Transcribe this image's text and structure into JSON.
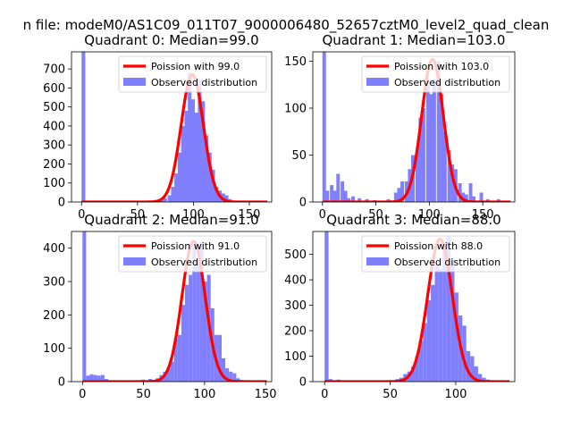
{
  "suptitle": "n file: modeM0/AS1C09_011T07_9000006480_52657cztM0_level2_quad_clean",
  "colors": {
    "hist": "#8080ff",
    "fit": "#ff0000"
  },
  "chart_data": [
    {
      "type": "bar+line",
      "title": "Quadrant 0: Median=99.0",
      "median": 99.0,
      "xlim": [
        -9,
        170
      ],
      "ylim": [
        0,
        790
      ],
      "xticks": [
        0,
        50,
        100,
        150
      ],
      "yticks": [
        0,
        100,
        200,
        300,
        400,
        500,
        600,
        700
      ],
      "bin_width": 3.3,
      "fit": {
        "label": "Poission with 99.0",
        "mean": 99.0,
        "peak": 670
      },
      "legend": {
        "line": "Poission with 99.0",
        "hist": "Observed distribution",
        "location": "upper right"
      },
      "hist": {
        "x": [
          0,
          70,
          73,
          77,
          80,
          83,
          86,
          89,
          92,
          95,
          98,
          101,
          104,
          107,
          110,
          113,
          116,
          119,
          122,
          125,
          128,
          131
        ],
        "values": [
          790,
          10,
          20,
          35,
          80,
          150,
          260,
          400,
          480,
          680,
          540,
          470,
          640,
          530,
          350,
          260,
          170,
          80,
          60,
          45,
          35,
          15
        ]
      }
    },
    {
      "type": "bar+line",
      "title": "Quadrant 1: Median=103.0",
      "median": 103.0,
      "xlim": [
        -9,
        180
      ],
      "ylim": [
        0,
        160
      ],
      "xticks": [
        0,
        50,
        100,
        150
      ],
      "yticks": [
        0,
        50,
        100,
        150
      ],
      "bin_width": 3.3,
      "fit": {
        "label": "Poission with 103.0",
        "mean": 103.0,
        "peak": 152
      },
      "legend": {
        "line": "Poission with 103.0",
        "hist": "Observed distribution",
        "location": "upper right"
      },
      "hist": {
        "x": [
          0,
          3,
          7,
          10,
          13,
          17,
          20,
          23,
          27,
          33,
          40,
          47,
          60,
          67,
          70,
          73,
          77,
          80,
          83,
          87,
          90,
          93,
          97,
          100,
          103,
          107,
          110,
          113,
          117,
          120,
          123,
          127,
          130,
          133,
          137,
          140,
          147,
          153,
          163
        ],
        "values": [
          160,
          12,
          18,
          12,
          30,
          22,
          12,
          4,
          6,
          4,
          3,
          2,
          3,
          10,
          15,
          22,
          22,
          35,
          50,
          55,
          90,
          100,
          125,
          115,
          130,
          150,
          115,
          75,
          55,
          40,
          35,
          20,
          10,
          8,
          20,
          6,
          10,
          3,
          3
        ]
      }
    },
    {
      "type": "bar+line",
      "title": "Quadrant 2: Median=91.0",
      "median": 91.0,
      "xlim": [
        -9,
        155
      ],
      "ylim": [
        0,
        450
      ],
      "xticks": [
        0,
        50,
        100,
        150
      ],
      "yticks": [
        0,
        100,
        200,
        300,
        400
      ],
      "bin_width": 3.0,
      "fit": {
        "label": "Poission with 91.0",
        "mean": 91.0,
        "peak": 420
      },
      "legend": {
        "line": "Poission with 91.0",
        "hist": "Observed distribution",
        "location": "upper right"
      },
      "hist": {
        "x": [
          0,
          3,
          6,
          9,
          12,
          15,
          18,
          48,
          54,
          60,
          63,
          66,
          69,
          72,
          75,
          78,
          81,
          84,
          87,
          90,
          93,
          96,
          99,
          102,
          105,
          108,
          111,
          114,
          117,
          120,
          123,
          126,
          129
        ],
        "values": [
          450,
          18,
          22,
          20,
          18,
          20,
          8,
          6,
          8,
          10,
          20,
          30,
          40,
          60,
          130,
          140,
          230,
          290,
          320,
          410,
          360,
          420,
          300,
          320,
          220,
          140,
          140,
          70,
          40,
          30,
          25,
          10,
          5
        ]
      }
    },
    {
      "type": "bar+line",
      "title": "Quadrant 3: Median=88.0",
      "median": 88.0,
      "xlim": [
        -9,
        145
      ],
      "ylim": [
        0,
        590
      ],
      "xticks": [
        0,
        50,
        100
      ],
      "yticks": [
        0,
        100,
        200,
        300,
        400,
        500
      ],
      "bin_width": 3.0,
      "fit": {
        "label": "Poission with 88.0",
        "mean": 88.0,
        "peak": 560
      },
      "legend": {
        "line": "Poission with 88.0",
        "hist": "Observed distribution",
        "location": "upper right"
      },
      "hist": {
        "x": [
          0,
          3,
          9,
          54,
          57,
          60,
          63,
          66,
          69,
          72,
          75,
          78,
          81,
          84,
          87,
          90,
          93,
          96,
          99,
          102,
          105,
          108,
          111,
          114,
          117,
          120,
          123
        ],
        "values": [
          590,
          10,
          8,
          10,
          15,
          30,
          40,
          60,
          100,
          160,
          230,
          320,
          380,
          460,
          440,
          520,
          570,
          480,
          350,
          260,
          220,
          120,
          100,
          60,
          30,
          15,
          8
        ]
      }
    }
  ]
}
